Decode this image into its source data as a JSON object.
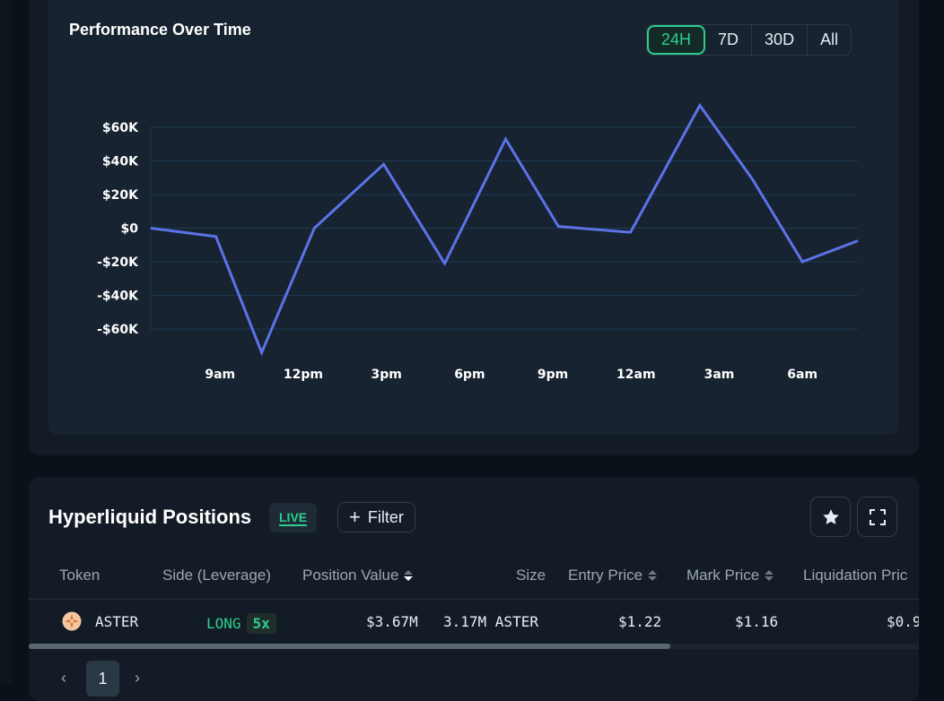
{
  "chart": {
    "title": "Performance Over Time",
    "ranges": [
      "24H",
      "7D",
      "30D",
      "All"
    ],
    "active_range": "24H",
    "line_color": "#5b73e8",
    "grid_color": "#1e3a55"
  },
  "chart_data": {
    "type": "line",
    "title": "Performance Over Time",
    "xlabel": "",
    "ylabel": "",
    "y_ticks": [
      60000,
      40000,
      20000,
      0,
      -20000,
      -40000,
      -60000
    ],
    "y_tick_labels": [
      "$60K",
      "$40K",
      "$20K",
      "$0",
      "-$20K",
      "-$40K",
      "-$60K"
    ],
    "x_tick_labels": [
      "9am",
      "12pm",
      "3pm",
      "6pm",
      "9pm",
      "12am",
      "3am",
      "6am"
    ],
    "x_ticks_hours": [
      9,
      12,
      15,
      18,
      21,
      24,
      27,
      30
    ],
    "xlim_hours": [
      6.5,
      32
    ],
    "ylim": [
      -60000,
      60000
    ],
    "grid": true,
    "series": [
      {
        "x_hours": [
          6.5,
          8.85,
          10.5,
          12.4,
          14.9,
          17.1,
          19.3,
          21.2,
          23.8,
          26.3,
          28.2,
          30.0,
          32.0
        ],
        "values": [
          0,
          -5000,
          -74000,
          0,
          38000,
          -21000,
          53000,
          1000,
          -2500,
          73000,
          29000,
          -20000,
          -7500
        ]
      }
    ]
  },
  "positions": {
    "title": "Hyperliquid Positions",
    "live_label": "LIVE",
    "filter_label": "Filter",
    "headers": {
      "token": "Token",
      "side": "Side (Leverage)",
      "position_value": "Position Value",
      "size": "Size",
      "entry_price": "Entry Price",
      "mark_price": "Mark Price",
      "liquidation_price": "Liquidation Pric"
    },
    "rows": [
      {
        "token": "ASTER",
        "side": "LONG",
        "leverage": "5x",
        "position_value": "$3.67M",
        "size": "3.17M ASTER",
        "entry_price": "$1.22",
        "mark_price": "$1.16",
        "liquidation_price": "$0.9"
      }
    ],
    "pagination": {
      "prev": "‹",
      "current_page": "1",
      "next": "›"
    },
    "icons": {
      "favorite": "star-icon",
      "fullscreen": "expand-icon",
      "token": "aster-token-icon"
    }
  }
}
